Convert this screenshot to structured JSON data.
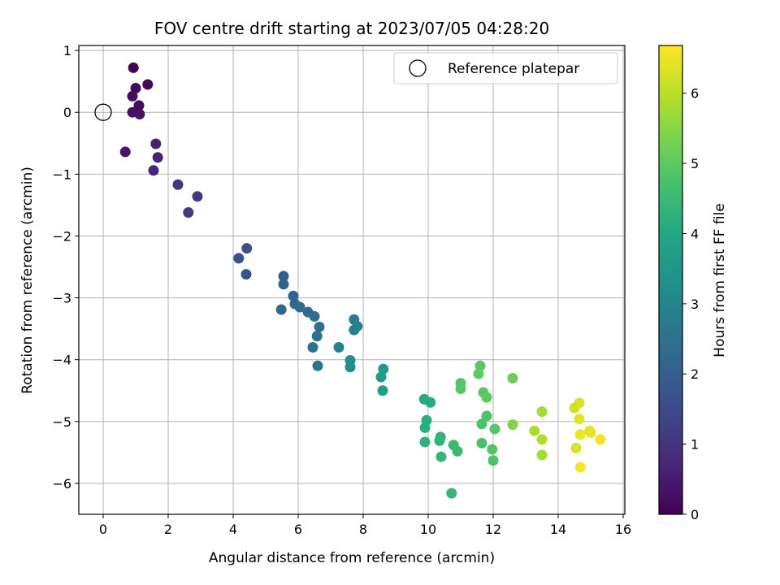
{
  "chart_data": {
    "type": "scatter",
    "title": "FOV centre drift starting at 2023/07/05 04:28:20",
    "xlabel": "Angular distance from reference (arcmin)",
    "ylabel": "Rotation from reference (arcmin)",
    "xlim": [
      -0.75,
      16.05
    ],
    "ylim": [
      -6.5,
      1.08
    ],
    "xticks": [
      0,
      2,
      4,
      6,
      8,
      10,
      12,
      14,
      16
    ],
    "yticks": [
      1,
      0,
      -1,
      -2,
      -3,
      -4,
      -5,
      -6
    ],
    "grid": true,
    "legend": {
      "position": "top-right",
      "entries": [
        "Reference platepar"
      ]
    },
    "reference_point": {
      "label": "Reference platepar",
      "x": 0,
      "y": 0
    },
    "colorbar": {
      "label": "Hours from first FF file",
      "colormap": "viridis",
      "range": [
        0,
        6.68
      ],
      "ticks": [
        0,
        1,
        2,
        3,
        4,
        5,
        6
      ]
    },
    "points": [
      {
        "x": 0.93,
        "y": 0.72,
        "t": 0.05
      },
      {
        "x": 1.37,
        "y": 0.45,
        "t": 0.1
      },
      {
        "x": 1.0,
        "y": 0.39,
        "t": 0.15
      },
      {
        "x": 0.9,
        "y": 0.26,
        "t": 0.2
      },
      {
        "x": 1.1,
        "y": 0.11,
        "t": 0.25
      },
      {
        "x": 0.9,
        "y": 0.0,
        "t": 0.3
      },
      {
        "x": 1.12,
        "y": -0.03,
        "t": 0.35
      },
      {
        "x": 0.68,
        "y": -0.64,
        "t": 0.4
      },
      {
        "x": 1.62,
        "y": -0.51,
        "t": 0.6
      },
      {
        "x": 1.68,
        "y": -0.73,
        "t": 0.65
      },
      {
        "x": 1.55,
        "y": -0.94,
        "t": 0.7
      },
      {
        "x": 2.3,
        "y": -1.17,
        "t": 1.0
      },
      {
        "x": 2.9,
        "y": -1.36,
        "t": 1.1
      },
      {
        "x": 2.62,
        "y": -1.62,
        "t": 1.15
      },
      {
        "x": 4.42,
        "y": -2.2,
        "t": 1.6
      },
      {
        "x": 4.17,
        "y": -2.36,
        "t": 1.65
      },
      {
        "x": 4.4,
        "y": -2.62,
        "t": 1.7
      },
      {
        "x": 5.55,
        "y": -2.65,
        "t": 2.0
      },
      {
        "x": 5.55,
        "y": -2.78,
        "t": 2.05
      },
      {
        "x": 5.85,
        "y": -2.97,
        "t": 2.15
      },
      {
        "x": 5.9,
        "y": -3.1,
        "t": 2.2
      },
      {
        "x": 6.05,
        "y": -3.15,
        "t": 2.3
      },
      {
        "x": 5.48,
        "y": -3.19,
        "t": 2.25
      },
      {
        "x": 6.3,
        "y": -3.23,
        "t": 2.35
      },
      {
        "x": 6.5,
        "y": -3.3,
        "t": 2.4
      },
      {
        "x": 6.65,
        "y": -3.47,
        "t": 2.45
      },
      {
        "x": 6.58,
        "y": -3.62,
        "t": 2.5
      },
      {
        "x": 6.45,
        "y": -3.8,
        "t": 2.55
      },
      {
        "x": 6.6,
        "y": -4.1,
        "t": 2.6
      },
      {
        "x": 7.72,
        "y": -3.35,
        "t": 2.75
      },
      {
        "x": 7.82,
        "y": -3.46,
        "t": 2.8
      },
      {
        "x": 7.72,
        "y": -3.52,
        "t": 2.85
      },
      {
        "x": 7.25,
        "y": -3.8,
        "t": 2.95
      },
      {
        "x": 7.6,
        "y": -4.01,
        "t": 3.2
      },
      {
        "x": 7.6,
        "y": -4.12,
        "t": 3.25
      },
      {
        "x": 8.62,
        "y": -4.15,
        "t": 3.6
      },
      {
        "x": 8.55,
        "y": -4.28,
        "t": 3.65
      },
      {
        "x": 8.6,
        "y": -4.5,
        "t": 3.7
      },
      {
        "x": 9.88,
        "y": -4.64,
        "t": 4.05
      },
      {
        "x": 10.07,
        "y": -4.69,
        "t": 4.1
      },
      {
        "x": 9.95,
        "y": -4.98,
        "t": 4.15
      },
      {
        "x": 9.9,
        "y": -5.1,
        "t": 4.2
      },
      {
        "x": 9.9,
        "y": -5.33,
        "t": 4.25
      },
      {
        "x": 10.38,
        "y": -5.25,
        "t": 4.3
      },
      {
        "x": 10.35,
        "y": -5.31,
        "t": 4.35
      },
      {
        "x": 10.4,
        "y": -5.57,
        "t": 4.4
      },
      {
        "x": 10.78,
        "y": -5.38,
        "t": 4.45
      },
      {
        "x": 10.9,
        "y": -5.48,
        "t": 4.5
      },
      {
        "x": 10.72,
        "y": -6.16,
        "t": 4.4
      },
      {
        "x": 11.0,
        "y": -4.38,
        "t": 4.85
      },
      {
        "x": 11.0,
        "y": -4.47,
        "t": 4.9
      },
      {
        "x": 11.6,
        "y": -4.1,
        "t": 4.95
      },
      {
        "x": 11.55,
        "y": -4.23,
        "t": 5.0
      },
      {
        "x": 11.7,
        "y": -4.53,
        "t": 4.95
      },
      {
        "x": 11.8,
        "y": -4.61,
        "t": 5.0
      },
      {
        "x": 11.8,
        "y": -4.91,
        "t": 4.8
      },
      {
        "x": 11.65,
        "y": -5.04,
        "t": 4.75
      },
      {
        "x": 12.05,
        "y": -5.12,
        "t": 4.9
      },
      {
        "x": 11.65,
        "y": -5.35,
        "t": 4.7
      },
      {
        "x": 11.97,
        "y": -5.45,
        "t": 4.85
      },
      {
        "x": 12.0,
        "y": -5.63,
        "t": 4.8
      },
      {
        "x": 12.6,
        "y": -4.3,
        "t": 5.2
      },
      {
        "x": 12.6,
        "y": -5.05,
        "t": 5.4
      },
      {
        "x": 13.5,
        "y": -4.84,
        "t": 5.75
      },
      {
        "x": 13.27,
        "y": -5.15,
        "t": 5.85
      },
      {
        "x": 13.5,
        "y": -5.29,
        "t": 5.9
      },
      {
        "x": 13.5,
        "y": -5.54,
        "t": 5.8
      },
      {
        "x": 14.65,
        "y": -4.7,
        "t": 6.3
      },
      {
        "x": 14.5,
        "y": -4.78,
        "t": 6.2
      },
      {
        "x": 14.65,
        "y": -4.96,
        "t": 6.35
      },
      {
        "x": 14.97,
        "y": -5.15,
        "t": 6.4
      },
      {
        "x": 15.0,
        "y": -5.18,
        "t": 6.45
      },
      {
        "x": 14.68,
        "y": -5.21,
        "t": 6.5
      },
      {
        "x": 15.3,
        "y": -5.29,
        "t": 6.55
      },
      {
        "x": 14.55,
        "y": -5.43,
        "t": 6.3
      },
      {
        "x": 14.68,
        "y": -5.74,
        "t": 6.6
      }
    ]
  }
}
